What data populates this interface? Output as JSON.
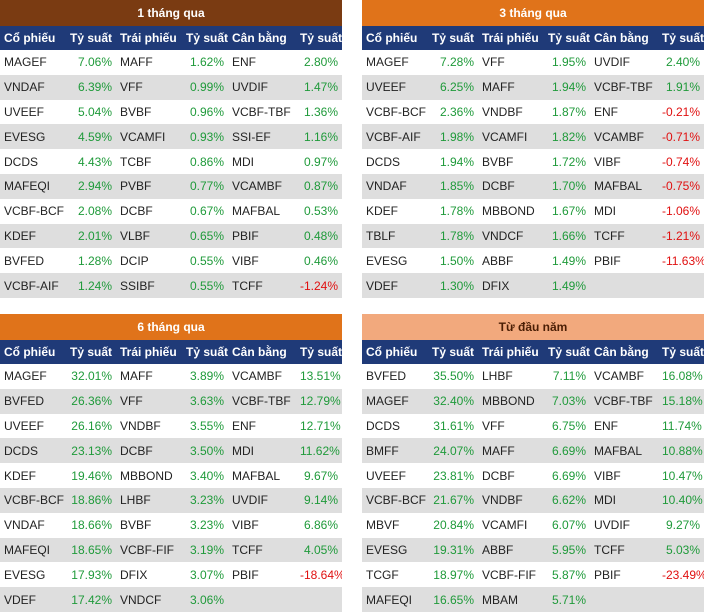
{
  "headers": [
    "Cổ phiếu",
    "Tỷ suất",
    "Trái phiếu",
    "Tỷ suất",
    "Cân bằng",
    "Tỷ suất"
  ],
  "colors": {
    "positive": "#1f9a3a",
    "negative": "#e01010",
    "header": "#1f3a78"
  },
  "panels": [
    {
      "title": "1 tháng qua",
      "rows": [
        [
          "MAGEF",
          "7.06%",
          "MAFF",
          "1.62%",
          "ENF",
          "2.80%"
        ],
        [
          "VNDAF",
          "6.39%",
          "VFF",
          "0.99%",
          "UVDIF",
          "1.47%"
        ],
        [
          "UVEEF",
          "5.04%",
          "BVBF",
          "0.96%",
          "VCBF-TBF",
          "1.36%"
        ],
        [
          "EVESG",
          "4.59%",
          "VCAMFI",
          "0.93%",
          "SSI-EF",
          "1.16%"
        ],
        [
          "DCDS",
          "4.43%",
          "TCBF",
          "0.86%",
          "MDI",
          "0.97%"
        ],
        [
          "MAFEQI",
          "2.94%",
          "PVBF",
          "0.77%",
          "VCAMBF",
          "0.87%"
        ],
        [
          "VCBF-BCF",
          "2.08%",
          "DCBF",
          "0.67%",
          "MAFBAL",
          "0.53%"
        ],
        [
          "KDEF",
          "2.01%",
          "VLBF",
          "0.65%",
          "PBIF",
          "0.48%"
        ],
        [
          "BVFED",
          "1.28%",
          "DCIP",
          "0.55%",
          "VIBF",
          "0.46%"
        ],
        [
          "VCBF-AIF",
          "1.24%",
          "SSIBF",
          "0.55%",
          "TCFF",
          "-1.24%"
        ]
      ]
    },
    {
      "title": "3 tháng qua",
      "rows": [
        [
          "MAGEF",
          "7.28%",
          "VFF",
          "1.95%",
          "UVDIF",
          "2.40%"
        ],
        [
          "UVEEF",
          "6.25%",
          "MAFF",
          "1.94%",
          "VCBF-TBF",
          "1.91%"
        ],
        [
          "VCBF-BCF",
          "2.36%",
          "VNDBF",
          "1.87%",
          "ENF",
          "-0.21%"
        ],
        [
          "VCBF-AIF",
          "1.98%",
          "VCAMFI",
          "1.82%",
          "VCAMBF",
          "-0.71%"
        ],
        [
          "DCDS",
          "1.94%",
          "BVBF",
          "1.72%",
          "VIBF",
          "-0.74%"
        ],
        [
          "VNDAF",
          "1.85%",
          "DCBF",
          "1.70%",
          "MAFBAL",
          "-0.75%"
        ],
        [
          "KDEF",
          "1.78%",
          "MBBOND",
          "1.67%",
          "MDI",
          "-1.06%"
        ],
        [
          "TBLF",
          "1.78%",
          "VNDCF",
          "1.66%",
          "TCFF",
          "-1.21%"
        ],
        [
          "EVESG",
          "1.50%",
          "ABBF",
          "1.49%",
          "PBIF",
          "-11.63%"
        ],
        [
          "VDEF",
          "1.30%",
          "DFIX",
          "1.49%",
          "",
          ""
        ]
      ]
    },
    {
      "title": "6 tháng qua",
      "rows": [
        [
          "MAGEF",
          "32.01%",
          "MAFF",
          "3.89%",
          "VCAMBF",
          "13.51%"
        ],
        [
          "BVFED",
          "26.36%",
          "VFF",
          "3.63%",
          "VCBF-TBF",
          "12.79%"
        ],
        [
          "UVEEF",
          "26.16%",
          "VNDBF",
          "3.55%",
          "ENF",
          "12.71%"
        ],
        [
          "DCDS",
          "23.13%",
          "DCBF",
          "3.50%",
          "MDI",
          "11.62%"
        ],
        [
          "KDEF",
          "19.46%",
          "MBBOND",
          "3.40%",
          "MAFBAL",
          "9.67%"
        ],
        [
          "VCBF-BCF",
          "18.86%",
          "LHBF",
          "3.23%",
          "UVDIF",
          "9.14%"
        ],
        [
          "VNDAF",
          "18.66%",
          "BVBF",
          "3.23%",
          "VIBF",
          "6.86%"
        ],
        [
          "MAFEQI",
          "18.65%",
          "VCBF-FIF",
          "3.19%",
          "TCFF",
          "4.05%"
        ],
        [
          "EVESG",
          "17.93%",
          "DFIX",
          "3.07%",
          "PBIF",
          "-18.64%"
        ],
        [
          "VDEF",
          "17.42%",
          "VNDCF",
          "3.06%",
          "",
          ""
        ]
      ]
    },
    {
      "title": "Từ đầu năm",
      "rows": [
        [
          "BVFED",
          "35.50%",
          "LHBF",
          "7.11%",
          "VCAMBF",
          "16.08%"
        ],
        [
          "MAGEF",
          "32.40%",
          "MBBOND",
          "7.03%",
          "VCBF-TBF",
          "15.18%"
        ],
        [
          "DCDS",
          "31.61%",
          "VFF",
          "6.75%",
          "ENF",
          "11.74%"
        ],
        [
          "BMFF",
          "24.07%",
          "MAFF",
          "6.69%",
          "MAFBAL",
          "10.88%"
        ],
        [
          "UVEEF",
          "23.81%",
          "DCBF",
          "6.69%",
          "VIBF",
          "10.47%"
        ],
        [
          "VCBF-BCF",
          "21.67%",
          "VNDBF",
          "6.62%",
          "MDI",
          "10.40%"
        ],
        [
          "MBVF",
          "20.84%",
          "VCAMFI",
          "6.07%",
          "UVDIF",
          "9.27%"
        ],
        [
          "EVESG",
          "19.31%",
          "ABBF",
          "5.95%",
          "TCFF",
          "5.03%"
        ],
        [
          "TCGF",
          "18.97%",
          "VCBF-FIF",
          "5.87%",
          "PBIF",
          "-23.49%"
        ],
        [
          "MAFEQI",
          "16.65%",
          "MBAM",
          "5.71%",
          "",
          ""
        ]
      ]
    }
  ]
}
